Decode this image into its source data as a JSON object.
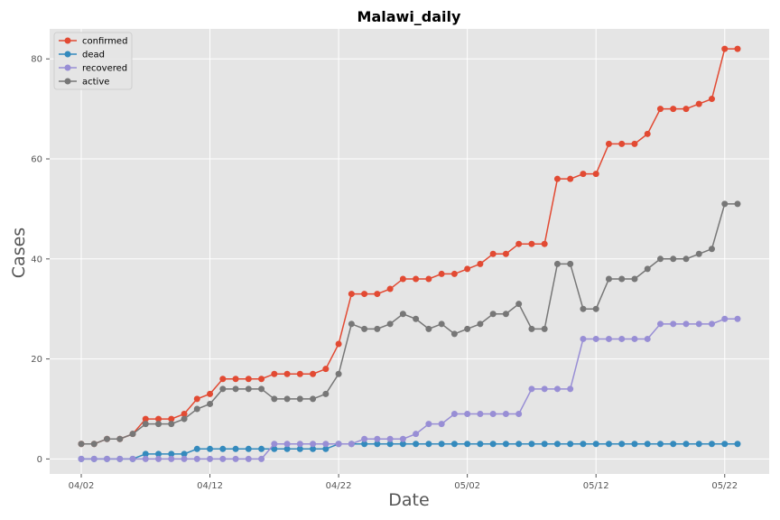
{
  "chart_data": {
    "type": "line",
    "title": "Malawi_daily",
    "xlabel": "Date",
    "ylabel": "Cases",
    "x": [
      "04/02",
      "04/03",
      "04/04",
      "04/05",
      "04/06",
      "04/07",
      "04/08",
      "04/09",
      "04/10",
      "04/11",
      "04/12",
      "04/13",
      "04/14",
      "04/15",
      "04/16",
      "04/17",
      "04/18",
      "04/19",
      "04/20",
      "04/21",
      "04/22",
      "04/23",
      "04/24",
      "04/25",
      "04/26",
      "04/27",
      "04/28",
      "04/29",
      "04/30",
      "05/01",
      "05/02",
      "05/03",
      "05/04",
      "05/05",
      "05/06",
      "05/07",
      "05/08",
      "05/09",
      "05/10",
      "05/11",
      "05/12",
      "05/13",
      "05/14",
      "05/15",
      "05/16",
      "05/17",
      "05/18",
      "05/19",
      "05/20",
      "05/21",
      "05/22",
      "05/23"
    ],
    "x_ticks": [
      "04/02",
      "04/12",
      "04/22",
      "05/02",
      "05/12",
      "05/22"
    ],
    "ylim": [
      -3,
      86
    ],
    "y_ticks": [
      0,
      20,
      40,
      60,
      80
    ],
    "grid": true,
    "legend_position": "top-left",
    "series": [
      {
        "name": "confirmed",
        "color": "#e24a33",
        "values": [
          3,
          3,
          4,
          4,
          5,
          8,
          8,
          8,
          9,
          12,
          13,
          16,
          16,
          16,
          16,
          17,
          17,
          17,
          17,
          18,
          23,
          33,
          33,
          33,
          34,
          36,
          36,
          36,
          37,
          37,
          38,
          39,
          41,
          41,
          43,
          43,
          43,
          56,
          56,
          57,
          57,
          63,
          63,
          63,
          65,
          70,
          70,
          70,
          71,
          72,
          82,
          82
        ]
      },
      {
        "name": "dead",
        "color": "#348abd",
        "values": [
          0,
          0,
          0,
          0,
          0,
          1,
          1,
          1,
          1,
          2,
          2,
          2,
          2,
          2,
          2,
          2,
          2,
          2,
          2,
          2,
          3,
          3,
          3,
          3,
          3,
          3,
          3,
          3,
          3,
          3,
          3,
          3,
          3,
          3,
          3,
          3,
          3,
          3,
          3,
          3,
          3,
          3,
          3,
          3,
          3,
          3,
          3,
          3,
          3,
          3,
          3,
          3
        ]
      },
      {
        "name": "recovered",
        "color": "#988ed5",
        "values": [
          0,
          0,
          0,
          0,
          0,
          0,
          0,
          0,
          0,
          0,
          0,
          0,
          0,
          0,
          0,
          3,
          3,
          3,
          3,
          3,
          3,
          3,
          4,
          4,
          4,
          4,
          5,
          7,
          7,
          9,
          9,
          9,
          9,
          9,
          9,
          14,
          14,
          14,
          14,
          24,
          24,
          24,
          24,
          24,
          24,
          27,
          27,
          27,
          27,
          27,
          28,
          28
        ]
      },
      {
        "name": "active",
        "color": "#777777",
        "values": [
          3,
          3,
          4,
          4,
          5,
          7,
          7,
          7,
          8,
          10,
          11,
          14,
          14,
          14,
          14,
          12,
          12,
          12,
          12,
          13,
          17,
          27,
          26,
          26,
          27,
          29,
          28,
          26,
          27,
          25,
          26,
          27,
          29,
          29,
          31,
          26,
          26,
          39,
          39,
          30,
          30,
          36,
          36,
          36,
          38,
          40,
          40,
          40,
          41,
          42,
          51,
          51
        ]
      }
    ]
  }
}
